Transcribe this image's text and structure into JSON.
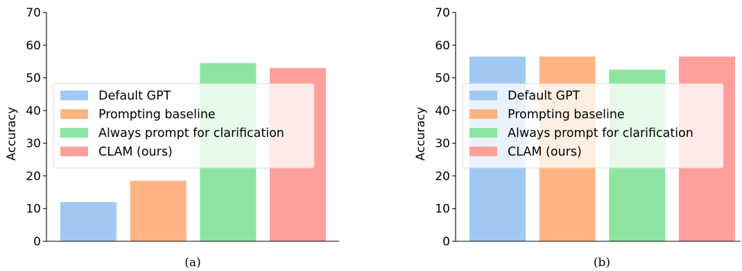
{
  "chart_data": [
    {
      "type": "bar",
      "panel_label": "(a)",
      "categories": [
        "Default GPT",
        "Prompting baseline",
        "Always prompt for clarification",
        "CLAM (ours)"
      ],
      "values": [
        12.0,
        18.5,
        54.5,
        53.0
      ],
      "colors": [
        "#a1c9f4",
        "#ffb482",
        "#8de5a1",
        "#ff9f9b"
      ],
      "ylabel": "Accuracy",
      "ylim": [
        0,
        70
      ],
      "yticks": [
        0,
        10,
        20,
        30,
        40,
        50,
        60,
        70
      ],
      "legend": {
        "placement": "center-left",
        "entries": [
          "Default GPT",
          "Prompting baseline",
          "Always prompt for clarification",
          "CLAM (ours)"
        ]
      },
      "grid": false
    },
    {
      "type": "bar",
      "panel_label": "(b)",
      "categories": [
        "Default GPT",
        "Prompting baseline",
        "Always prompt for clarification",
        "CLAM (ours)"
      ],
      "values": [
        56.5,
        56.5,
        52.5,
        56.5
      ],
      "colors": [
        "#a1c9f4",
        "#ffb482",
        "#8de5a1",
        "#ff9f9b"
      ],
      "ylabel": "Accuracy",
      "ylim": [
        0,
        70
      ],
      "yticks": [
        0,
        10,
        20,
        30,
        40,
        50,
        60,
        70
      ],
      "legend": {
        "placement": "center-left",
        "entries": [
          "Default GPT",
          "Prompting baseline",
          "Always prompt for clarification",
          "CLAM (ours)"
        ]
      },
      "grid": false
    }
  ]
}
